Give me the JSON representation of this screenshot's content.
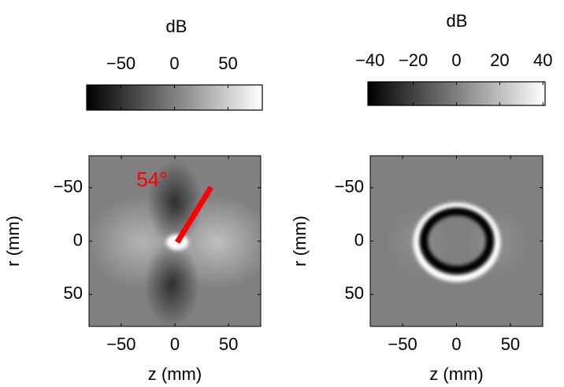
{
  "chart_data": [
    {
      "type": "heatmap",
      "colorbar_label": "dB",
      "colorbar_lim": [
        -82,
        82
      ],
      "colorbar_ticks": [
        {
          "value": -50,
          "label": "−50"
        },
        0,
        50
      ],
      "annotation": "54°",
      "xlabel": "z (mm)",
      "ylabel": "r (mm)",
      "xlim": [
        -80,
        80
      ],
      "ylim": [
        -80,
        80
      ],
      "xticks": [
        {
          "value": -50,
          "label": "−50"
        },
        0,
        50
      ],
      "yticks": [
        {
          "value": -50,
          "label": "−50"
        },
        0,
        50
      ]
    },
    {
      "type": "heatmap",
      "colorbar_label": "dB",
      "colorbar_lim": [
        -41,
        41
      ],
      "colorbar_ticks": [
        {
          "value": -40,
          "label": "−40"
        },
        {
          "value": -20,
          "label": "−20"
        },
        0,
        20,
        40
      ],
      "xlabel": "z (mm)",
      "ylabel": "r (mm)",
      "xlim": [
        -80,
        80
      ],
      "ylim": [
        -80,
        80
      ],
      "xticks": [
        {
          "value": -50,
          "label": "−50"
        },
        0,
        50
      ],
      "yticks": [
        {
          "value": -50,
          "label": "−50"
        },
        0,
        50
      ]
    }
  ]
}
